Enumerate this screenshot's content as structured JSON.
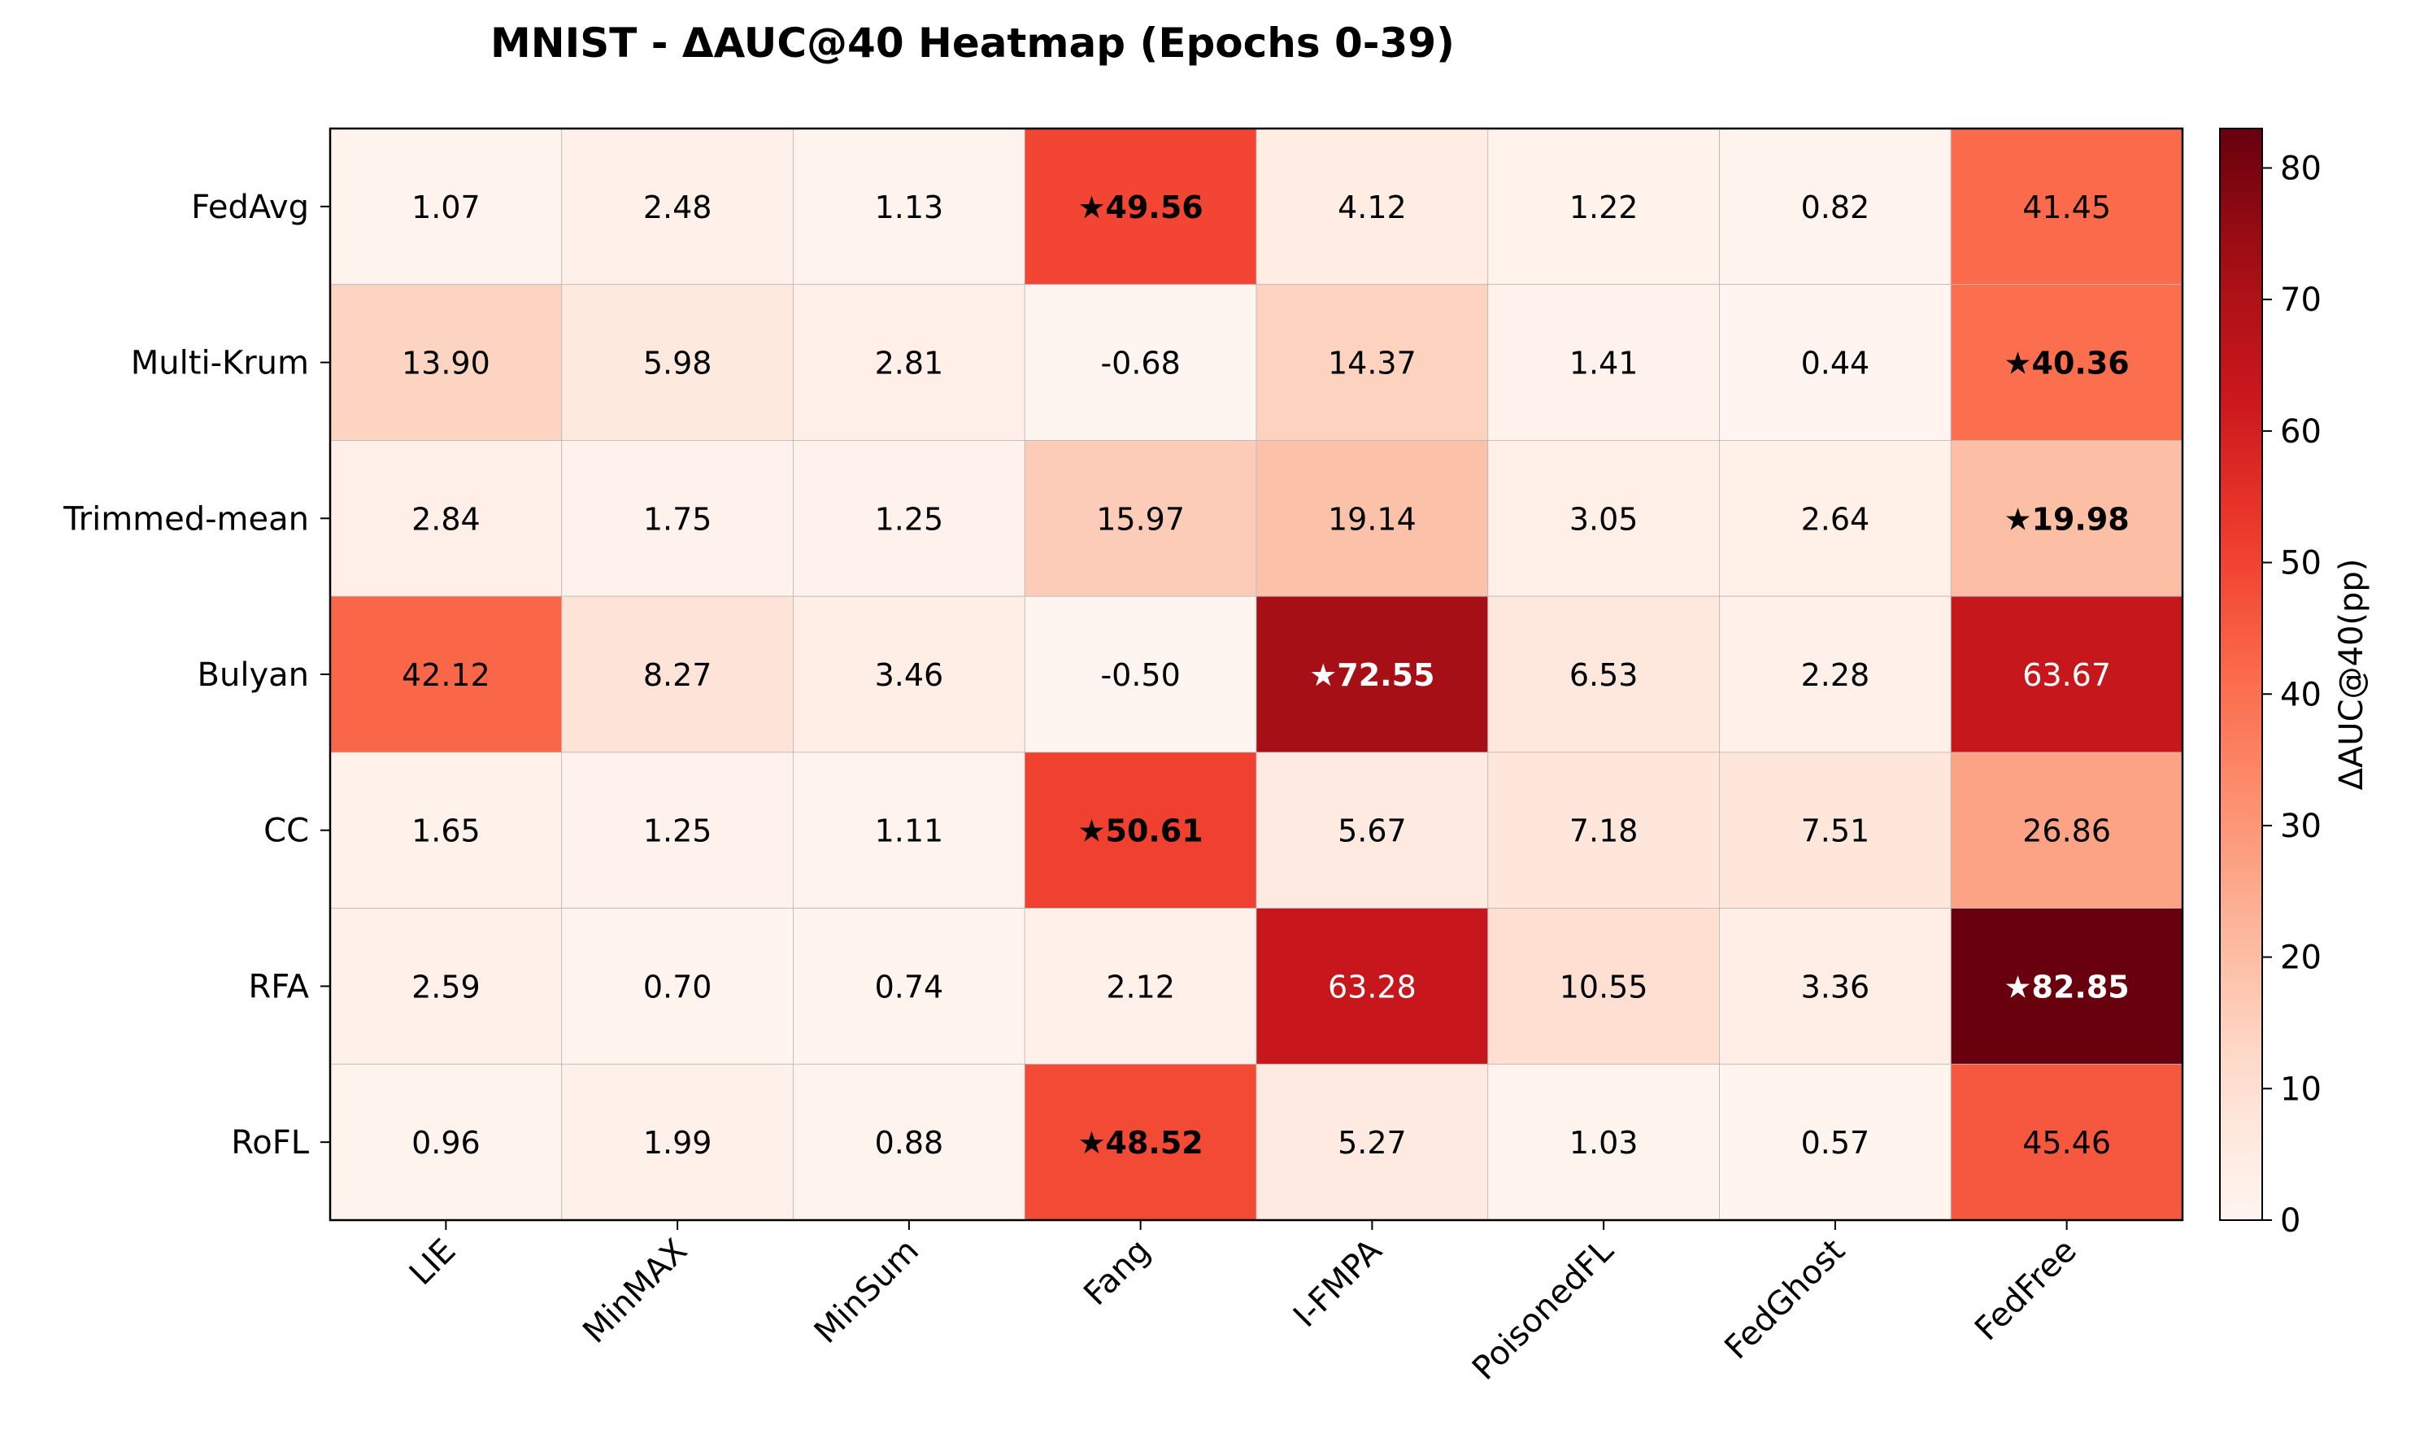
{
  "chart_data": {
    "type": "heatmap",
    "title": "MNIST - ΔAUC@40 Heatmap (Epochs 0-39)",
    "xlabel": "",
    "ylabel": "",
    "columns": [
      "LIE",
      "MinMAX",
      "MinSum",
      "Fang",
      "I-FMPA",
      "PoisonedFL",
      "FedGhost",
      "FedFree"
    ],
    "rows": [
      "FedAvg",
      "Multi-Krum",
      "Trimmed-mean",
      "Bulyan",
      "CC",
      "RFA",
      "RoFL"
    ],
    "values": [
      [
        1.07,
        2.48,
        1.13,
        49.56,
        4.12,
        1.22,
        0.82,
        41.45
      ],
      [
        13.9,
        5.98,
        2.81,
        -0.68,
        14.37,
        1.41,
        0.44,
        40.36
      ],
      [
        2.84,
        1.75,
        1.25,
        15.97,
        19.14,
        3.05,
        2.64,
        19.98
      ],
      [
        42.12,
        8.27,
        3.46,
        -0.5,
        72.55,
        6.53,
        2.28,
        63.67
      ],
      [
        1.65,
        1.25,
        1.11,
        50.61,
        5.67,
        7.18,
        7.51,
        26.86
      ],
      [
        2.59,
        0.7,
        0.74,
        2.12,
        63.28,
        10.55,
        3.36,
        82.85
      ],
      [
        0.96,
        1.99,
        0.88,
        48.52,
        5.27,
        1.03,
        0.57,
        45.46
      ]
    ],
    "cell_labels": [
      [
        "1.07",
        "2.48",
        "1.13",
        "★49.56",
        "4.12",
        "1.22",
        "0.82",
        "41.45"
      ],
      [
        "13.90",
        "5.98",
        "2.81",
        "-0.68",
        "14.37",
        "1.41",
        "0.44",
        "★40.36"
      ],
      [
        "2.84",
        "1.75",
        "1.25",
        "15.97",
        "19.14",
        "3.05",
        "2.64",
        "★19.98"
      ],
      [
        "42.12",
        "8.27",
        "3.46",
        "-0.50",
        "★72.55",
        "6.53",
        "2.28",
        "63.67"
      ],
      [
        "1.65",
        "1.25",
        "1.11",
        "★50.61",
        "5.67",
        "7.18",
        "7.51",
        "26.86"
      ],
      [
        "2.59",
        "0.70",
        "0.74",
        "2.12",
        "63.28",
        "10.55",
        "3.36",
        "★82.85"
      ],
      [
        "0.96",
        "1.99",
        "0.88",
        "★48.52",
        "5.27",
        "1.03",
        "0.57",
        "45.46"
      ]
    ],
    "starred": [
      [
        0,
        3
      ],
      [
        1,
        7
      ],
      [
        2,
        7
      ],
      [
        3,
        4
      ],
      [
        4,
        3
      ],
      [
        5,
        7
      ],
      [
        6,
        3
      ]
    ],
    "colorbar": {
      "label": "ΔAUC@40(pp)",
      "range": [
        0,
        83
      ],
      "ticks": [
        0,
        10,
        20,
        30,
        40,
        50,
        60,
        70,
        80
      ],
      "tick_labels": [
        "0",
        "10",
        "20",
        "30",
        "40",
        "50",
        "60",
        "70",
        "80"
      ],
      "colormap": "Reds"
    },
    "grid": true,
    "colors": {
      "text_dark": "#000000",
      "text_light": "#ffffff",
      "frame": "#000000",
      "cell_border": "#b8b8b8"
    }
  }
}
